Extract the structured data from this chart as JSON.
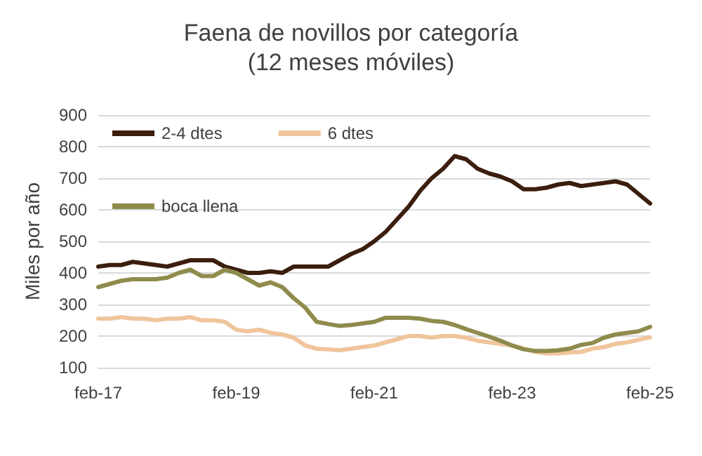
{
  "chart_data": {
    "type": "line",
    "title": "Faena de novillos por categoría",
    "subtitle": "(12 meses móviles)",
    "ylabel": "Miles por año",
    "categories": [
      "feb-17",
      null,
      null,
      null,
      null,
      null,
      null,
      null,
      null,
      null,
      null,
      null,
      "feb-19",
      null,
      null,
      null,
      null,
      null,
      null,
      null,
      null,
      null,
      null,
      null,
      "feb-21",
      null,
      null,
      null,
      null,
      null,
      null,
      null,
      null,
      null,
      null,
      null,
      "feb-23",
      null,
      null,
      null,
      null,
      null,
      null,
      null,
      null,
      null,
      null,
      null,
      "feb-25"
    ],
    "series": [
      {
        "name": "2-4 dtes",
        "color": "#3b1e0e",
        "values": [
          420,
          425,
          425,
          435,
          430,
          425,
          420,
          430,
          440,
          440,
          440,
          420,
          410,
          400,
          400,
          405,
          400,
          420,
          420,
          420,
          420,
          440,
          460,
          475,
          500,
          530,
          570,
          610,
          660,
          700,
          730,
          770,
          760,
          730,
          715,
          705,
          690,
          665,
          665,
          670,
          680,
          685,
          675,
          680,
          685,
          690,
          680,
          650,
          620
        ]
      },
      {
        "name": "6 dtes",
        "color": "#f0c59c",
        "values": [
          255,
          255,
          260,
          255,
          255,
          250,
          255,
          255,
          260,
          250,
          250,
          245,
          220,
          215,
          220,
          210,
          205,
          195,
          170,
          160,
          158,
          155,
          160,
          165,
          170,
          180,
          190,
          200,
          200,
          195,
          200,
          200,
          195,
          185,
          180,
          175,
          170,
          160,
          150,
          145,
          145,
          148,
          150,
          160,
          165,
          175,
          180,
          188,
          196
        ]
      },
      {
        "name": "boca llena",
        "color": "#8e8b4c",
        "values": [
          355,
          365,
          375,
          380,
          380,
          380,
          385,
          400,
          410,
          390,
          390,
          410,
          400,
          380,
          360,
          370,
          355,
          320,
          290,
          245,
          238,
          232,
          235,
          240,
          245,
          258,
          258,
          258,
          255,
          248,
          245,
          235,
          222,
          210,
          198,
          185,
          170,
          158,
          153,
          153,
          155,
          160,
          172,
          178,
          195,
          205,
          210,
          215,
          229
        ]
      }
    ],
    "ylim": [
      100,
      900
    ],
    "yticks": [
      100,
      200,
      300,
      400,
      500,
      600,
      700,
      800,
      900
    ],
    "grid": "y",
    "legend": "top",
    "marker": "none",
    "line_style": "solid"
  }
}
